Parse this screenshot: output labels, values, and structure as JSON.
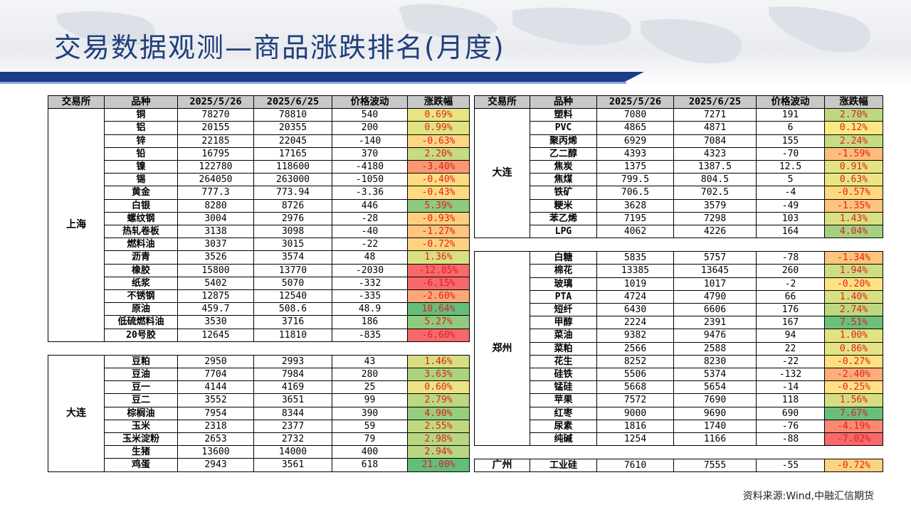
{
  "title": "交易数据观测—商品涨跌排名(月度)",
  "headers": [
    "交易所",
    "品种",
    "2025/5/26",
    "2025/6/25",
    "价格波动",
    "涨跌幅"
  ],
  "source": "资料来源:Wind,中融汇信期货",
  "colors": {
    "pos_max": "#63be7b",
    "neutral": "#ffeb84",
    "neg_max": "#f8696b",
    "title": "#1f3f7a",
    "band": "#1a3a8a"
  },
  "left_groups": [
    {
      "exchange": "上海",
      "rows": [
        [
          "铜",
          "78270",
          "78810",
          "540",
          "0.69%",
          0.69
        ],
        [
          "铝",
          "20155",
          "20355",
          "200",
          "0.99%",
          0.99
        ],
        [
          "锌",
          "22185",
          "22045",
          "-140",
          "-0.63%",
          -0.63
        ],
        [
          "铅",
          "16795",
          "17165",
          "370",
          "2.20%",
          2.2
        ],
        [
          "镍",
          "122780",
          "118600",
          "-4180",
          "-3.40%",
          -3.4
        ],
        [
          "锡",
          "264050",
          "263000",
          "-1050",
          "-0.40%",
          -0.4
        ],
        [
          "黄金",
          "777.3",
          "773.94",
          "-3.36",
          "-0.43%",
          -0.43
        ],
        [
          "白银",
          "8280",
          "8726",
          "446",
          "5.39%",
          5.39
        ],
        [
          "螺纹钢",
          "3004",
          "2976",
          "-28",
          "-0.93%",
          -0.93
        ],
        [
          "热轧卷板",
          "3138",
          "3098",
          "-40",
          "-1.27%",
          -1.27
        ],
        [
          "燃料油",
          "3037",
          "3015",
          "-22",
          "-0.72%",
          -0.72
        ],
        [
          "沥青",
          "3526",
          "3574",
          "48",
          "1.36%",
          1.36
        ],
        [
          "橡胶",
          "15800",
          "13770",
          "-2030",
          "-12.85%",
          -12.85
        ],
        [
          "纸浆",
          "5402",
          "5070",
          "-332",
          "-6.15%",
          -6.15
        ],
        [
          "不锈钢",
          "12875",
          "12540",
          "-335",
          "-2.60%",
          -2.6
        ],
        [
          "原油",
          "459.7",
          "508.6",
          "48.9",
          "10.64%",
          10.64
        ],
        [
          "低硫燃料油",
          "3530",
          "3716",
          "186",
          "5.27%",
          5.27
        ],
        [
          "20号胶",
          "12645",
          "11810",
          "-835",
          "-6.60%",
          -6.6
        ]
      ]
    },
    {
      "exchange": "大连",
      "rows": [
        [
          "豆粕",
          "2950",
          "2993",
          "43",
          "1.46%",
          1.46
        ],
        [
          "豆油",
          "7704",
          "7984",
          "280",
          "3.63%",
          3.63
        ],
        [
          "豆一",
          "4144",
          "4169",
          "25",
          "0.60%",
          0.6
        ],
        [
          "豆二",
          "3552",
          "3651",
          "99",
          "2.79%",
          2.79
        ],
        [
          "棕榈油",
          "7954",
          "8344",
          "390",
          "4.90%",
          4.9
        ],
        [
          "玉米",
          "2318",
          "2377",
          "59",
          "2.55%",
          2.55
        ],
        [
          "玉米淀粉",
          "2653",
          "2732",
          "79",
          "2.98%",
          2.98
        ],
        [
          "生猪",
          "13600",
          "14000",
          "400",
          "2.94%",
          2.94
        ],
        [
          "鸡蛋",
          "2943",
          "3561",
          "618",
          "21.00%",
          21.0
        ]
      ]
    }
  ],
  "right_groups": [
    {
      "exchange": "大连",
      "rows": [
        [
          "塑料",
          "7080",
          "7271",
          "191",
          "2.70%",
          2.7
        ],
        [
          "PVC",
          "4865",
          "4871",
          "6",
          "0.12%",
          0.12
        ],
        [
          "聚丙烯",
          "6929",
          "7084",
          "155",
          "2.24%",
          2.24
        ],
        [
          "乙二醇",
          "4393",
          "4323",
          "-70",
          "-1.59%",
          -1.59
        ],
        [
          "焦炭",
          "1375",
          "1387.5",
          "12.5",
          "0.91%",
          0.91
        ],
        [
          "焦煤",
          "799.5",
          "804.5",
          "5",
          "0.63%",
          0.63
        ],
        [
          "铁矿",
          "706.5",
          "702.5",
          "-4",
          "-0.57%",
          -0.57
        ],
        [
          "粳米",
          "3628",
          "3579",
          "-49",
          "-1.35%",
          -1.35
        ],
        [
          "苯乙烯",
          "7195",
          "7298",
          "103",
          "1.43%",
          1.43
        ],
        [
          "LPG",
          "4062",
          "4226",
          "164",
          "4.04%",
          4.04
        ]
      ]
    },
    {
      "exchange": "郑州",
      "rows": [
        [
          "白糖",
          "5835",
          "5757",
          "-78",
          "-1.34%",
          -1.34
        ],
        [
          "棉花",
          "13385",
          "13645",
          "260",
          "1.94%",
          1.94
        ],
        [
          "玻璃",
          "1019",
          "1017",
          "-2",
          "-0.20%",
          -0.2
        ],
        [
          "PTA",
          "4724",
          "4790",
          "66",
          "1.40%",
          1.4
        ],
        [
          "短纤",
          "6430",
          "6606",
          "176",
          "2.74%",
          2.74
        ],
        [
          "甲醇",
          "2224",
          "2391",
          "167",
          "7.51%",
          7.51
        ],
        [
          "菜油",
          "9382",
          "9476",
          "94",
          "1.00%",
          1.0
        ],
        [
          "菜粕",
          "2566",
          "2588",
          "22",
          "0.86%",
          0.86
        ],
        [
          "花生",
          "8252",
          "8230",
          "-22",
          "-0.27%",
          -0.27
        ],
        [
          "硅铁",
          "5506",
          "5374",
          "-132",
          "-2.40%",
          -2.4
        ],
        [
          "锰硅",
          "5668",
          "5654",
          "-14",
          "-0.25%",
          -0.25
        ],
        [
          "苹果",
          "7572",
          "7690",
          "118",
          "1.56%",
          1.56
        ],
        [
          "红枣",
          "9000",
          "9690",
          "690",
          "7.67%",
          7.67
        ],
        [
          "尿素",
          "1816",
          "1740",
          "-76",
          "-4.19%",
          -4.19
        ],
        [
          "纯碱",
          "1254",
          "1166",
          "-88",
          "-7.02%",
          -7.02
        ]
      ]
    },
    {
      "exchange": "广州",
      "rows": [
        [
          "工业硅",
          "7610",
          "7555",
          "-55",
          "-0.72%",
          -0.72
        ]
      ]
    }
  ]
}
